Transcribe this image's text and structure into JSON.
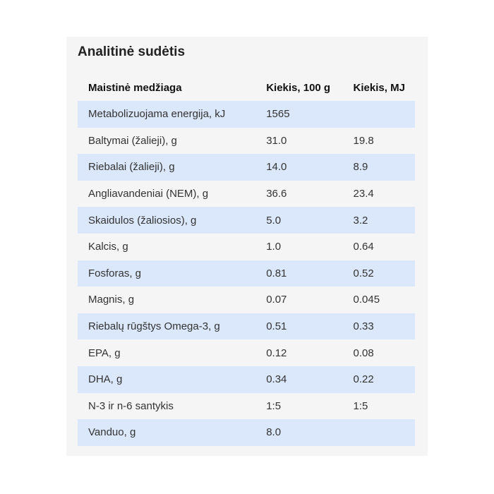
{
  "title": "Analitinė sudėtis",
  "columns": [
    "Maistinė medžiaga",
    "Kiekis, 100 g",
    "Kiekis, MJ"
  ],
  "rows": [
    [
      "Metabolizuojama energija, kJ",
      "1565",
      ""
    ],
    [
      "Baltymai (žalieji), g",
      "31.0",
      "19.8"
    ],
    [
      "Riebalai (žalieji), g",
      "14.0",
      "8.9"
    ],
    [
      "Angliavandeniai (NEM), g",
      "36.6",
      "23.4"
    ],
    [
      "Skaidulos (žaliosios),  g",
      "5.0",
      "3.2"
    ],
    [
      "Kalcis, g",
      "1.0",
      "0.64"
    ],
    [
      "Fosforas, g",
      "0.81",
      "0.52"
    ],
    [
      "Magnis, g",
      "0.07",
      "0.045"
    ],
    [
      "Riebalų rūgštys Omega-3, g",
      "0.51",
      "0.33"
    ],
    [
      "EPA, g",
      "0.12",
      "0.08"
    ],
    [
      "DHA, g",
      "0.34",
      "0.22"
    ],
    [
      "N-3 ir n-6 santykis",
      "1:5",
      "1:5"
    ],
    [
      "Vanduo, g",
      "8.0",
      ""
    ]
  ]
}
